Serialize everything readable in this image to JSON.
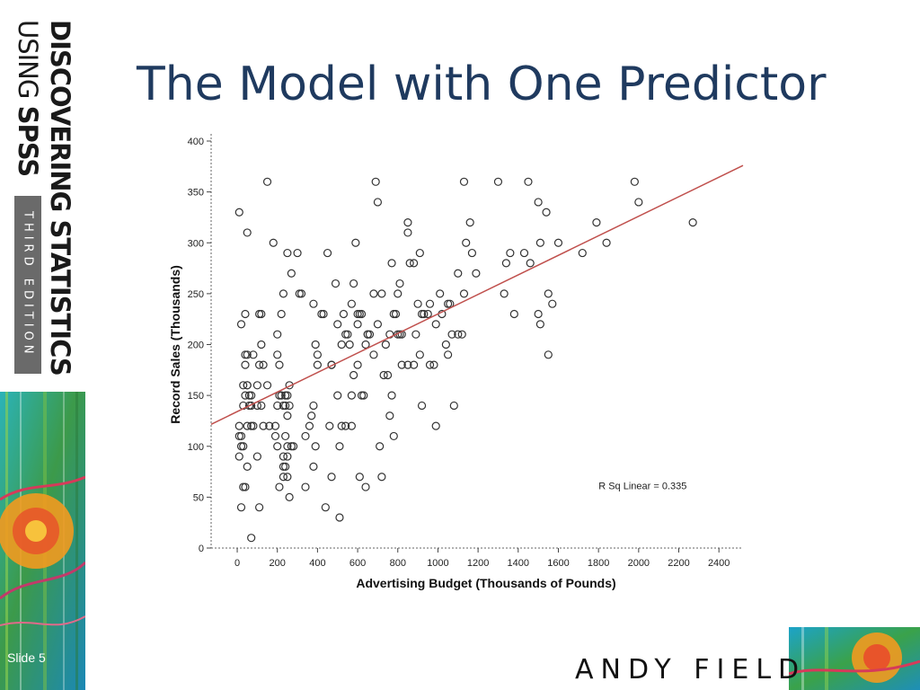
{
  "branding": {
    "line1": "DISCOVERING STATISTICS",
    "line2_light": "USING ",
    "line2_bold": "SPSS",
    "edition": "THIRD EDITION"
  },
  "slide": {
    "title": "The Model with One Predictor",
    "slide_number": "Slide 5",
    "author": "ANDY FIELD"
  },
  "colors": {
    "title": "#1f3a5f",
    "regression_line": "#c0504d",
    "marker": "#333333"
  },
  "chart_data": {
    "type": "scatter",
    "title": "",
    "xlabel": "Advertising Budget (Thousands of Pounds)",
    "ylabel": "Record Sales (Thousands)",
    "xlim": [
      -130,
      2520
    ],
    "ylim": [
      0,
      400
    ],
    "xticks": [
      0,
      200,
      400,
      600,
      800,
      1000,
      1200,
      1400,
      1600,
      1800,
      2000,
      2200,
      2400
    ],
    "yticks": [
      0,
      50,
      100,
      150,
      200,
      250,
      300,
      350,
      400
    ],
    "grid": false,
    "annotation": "R Sq Linear = 0.335",
    "fit_line": {
      "intercept": 134.1,
      "slope": 0.096
    },
    "points": [
      [
        10,
        330
      ],
      [
        150,
        360
      ],
      [
        50,
        310
      ],
      [
        180,
        300
      ],
      [
        250,
        290
      ],
      [
        300,
        290
      ],
      [
        270,
        270
      ],
      [
        230,
        250
      ],
      [
        310,
        250
      ],
      [
        320,
        250
      ],
      [
        40,
        230
      ],
      [
        110,
        230
      ],
      [
        120,
        230
      ],
      [
        220,
        230
      ],
      [
        20,
        220
      ],
      [
        40,
        190
      ],
      [
        50,
        190
      ],
      [
        80,
        190
      ],
      [
        110,
        180
      ],
      [
        130,
        180
      ],
      [
        200,
        190
      ],
      [
        210,
        180
      ],
      [
        200,
        210
      ],
      [
        120,
        200
      ],
      [
        40,
        180
      ],
      [
        30,
        160
      ],
      [
        50,
        160
      ],
      [
        50,
        160
      ],
      [
        100,
        160
      ],
      [
        150,
        160
      ],
      [
        260,
        160
      ],
      [
        40,
        150
      ],
      [
        60,
        150
      ],
      [
        70,
        150
      ],
      [
        120,
        140
      ],
      [
        210,
        150
      ],
      [
        220,
        150
      ],
      [
        240,
        150
      ],
      [
        250,
        150
      ],
      [
        30,
        140
      ],
      [
        60,
        140
      ],
      [
        70,
        140
      ],
      [
        100,
        140
      ],
      [
        200,
        140
      ],
      [
        230,
        140
      ],
      [
        240,
        140
      ],
      [
        260,
        140
      ],
      [
        250,
        130
      ],
      [
        10,
        120
      ],
      [
        50,
        120
      ],
      [
        70,
        120
      ],
      [
        80,
        120
      ],
      [
        130,
        120
      ],
      [
        160,
        120
      ],
      [
        190,
        120
      ],
      [
        10,
        110
      ],
      [
        20,
        110
      ],
      [
        190,
        110
      ],
      [
        240,
        110
      ],
      [
        20,
        100
      ],
      [
        30,
        100
      ],
      [
        200,
        100
      ],
      [
        250,
        100
      ],
      [
        270,
        100
      ],
      [
        280,
        100
      ],
      [
        10,
        90
      ],
      [
        100,
        90
      ],
      [
        230,
        90
      ],
      [
        250,
        90
      ],
      [
        50,
        80
      ],
      [
        230,
        80
      ],
      [
        240,
        80
      ],
      [
        230,
        70
      ],
      [
        30,
        60
      ],
      [
        40,
        60
      ],
      [
        210,
        60
      ],
      [
        250,
        70
      ],
      [
        260,
        50
      ],
      [
        20,
        40
      ],
      [
        110,
        40
      ],
      [
        70,
        10
      ],
      [
        380,
        240
      ],
      [
        390,
        200
      ],
      [
        400,
        190
      ],
      [
        420,
        230
      ],
      [
        450,
        290
      ],
      [
        490,
        260
      ],
      [
        530,
        230
      ],
      [
        550,
        210
      ],
      [
        570,
        240
      ],
      [
        590,
        300
      ],
      [
        580,
        260
      ],
      [
        600,
        230
      ],
      [
        610,
        230
      ],
      [
        620,
        230
      ],
      [
        640,
        200
      ],
      [
        650,
        210
      ],
      [
        660,
        210
      ],
      [
        680,
        190
      ],
      [
        690,
        360
      ],
      [
        700,
        340
      ],
      [
        720,
        250
      ],
      [
        760,
        210
      ],
      [
        770,
        280
      ],
      [
        780,
        230
      ],
      [
        790,
        230
      ],
      [
        800,
        250
      ],
      [
        810,
        260
      ],
      [
        810,
        210
      ],
      [
        820,
        210
      ],
      [
        850,
        320
      ],
      [
        850,
        310
      ],
      [
        860,
        280
      ],
      [
        880,
        280
      ],
      [
        900,
        240
      ],
      [
        910,
        290
      ],
      [
        920,
        230
      ],
      [
        930,
        230
      ],
      [
        950,
        230
      ],
      [
        960,
        240
      ],
      [
        990,
        220
      ],
      [
        1010,
        250
      ],
      [
        1020,
        230
      ],
      [
        1050,
        240
      ],
      [
        1060,
        240
      ],
      [
        1100,
        270
      ],
      [
        1130,
        360
      ],
      [
        1140,
        300
      ],
      [
        1160,
        320
      ],
      [
        1170,
        290
      ],
      [
        1190,
        270
      ],
      [
        1130,
        250
      ],
      [
        1100,
        210
      ],
      [
        1120,
        210
      ],
      [
        1300,
        360
      ],
      [
        1340,
        280
      ],
      [
        1360,
        290
      ],
      [
        1380,
        230
      ],
      [
        1430,
        290
      ],
      [
        1450,
        360
      ],
      [
        1460,
        280
      ],
      [
        1500,
        340
      ],
      [
        1510,
        300
      ],
      [
        1540,
        330
      ],
      [
        1550,
        250
      ],
      [
        1570,
        240
      ],
      [
        1500,
        230
      ],
      [
        1510,
        220
      ],
      [
        1550,
        190
      ],
      [
        1600,
        300
      ],
      [
        1720,
        290
      ],
      [
        1790,
        320
      ],
      [
        1840,
        300
      ],
      [
        1980,
        360
      ],
      [
        2000,
        340
      ],
      [
        2270,
        320
      ],
      [
        1330,
        250
      ],
      [
        960,
        180
      ],
      [
        990,
        120
      ],
      [
        1080,
        140
      ],
      [
        780,
        110
      ],
      [
        770,
        150
      ],
      [
        880,
        180
      ],
      [
        890,
        210
      ],
      [
        910,
        190
      ],
      [
        920,
        140
      ],
      [
        850,
        180
      ],
      [
        730,
        170
      ],
      [
        710,
        100
      ],
      [
        720,
        70
      ],
      [
        640,
        60
      ],
      [
        610,
        70
      ],
      [
        620,
        150
      ],
      [
        630,
        150
      ],
      [
        600,
        180
      ],
      [
        570,
        150
      ],
      [
        570,
        120
      ],
      [
        540,
        120
      ],
      [
        520,
        120
      ],
      [
        510,
        100
      ],
      [
        500,
        150
      ],
      [
        470,
        180
      ],
      [
        460,
        120
      ],
      [
        470,
        70
      ],
      [
        440,
        40
      ],
      [
        510,
        30
      ],
      [
        360,
        120
      ],
      [
        370,
        130
      ],
      [
        380,
        140
      ],
      [
        340,
        110
      ],
      [
        340,
        60
      ],
      [
        380,
        80
      ],
      [
        390,
        100
      ],
      [
        400,
        180
      ],
      [
        430,
        230
      ],
      [
        470,
        180
      ],
      [
        500,
        220
      ],
      [
        520,
        200
      ],
      [
        560,
        200
      ],
      [
        540,
        210
      ],
      [
        580,
        170
      ],
      [
        600,
        220
      ],
      [
        650,
        210
      ],
      [
        680,
        250
      ],
      [
        700,
        220
      ],
      [
        740,
        200
      ],
      [
        750,
        170
      ],
      [
        760,
        130
      ],
      [
        800,
        210
      ],
      [
        820,
        180
      ],
      [
        980,
        180
      ],
      [
        1040,
        200
      ],
      [
        1050,
        190
      ],
      [
        1070,
        210
      ]
    ]
  }
}
